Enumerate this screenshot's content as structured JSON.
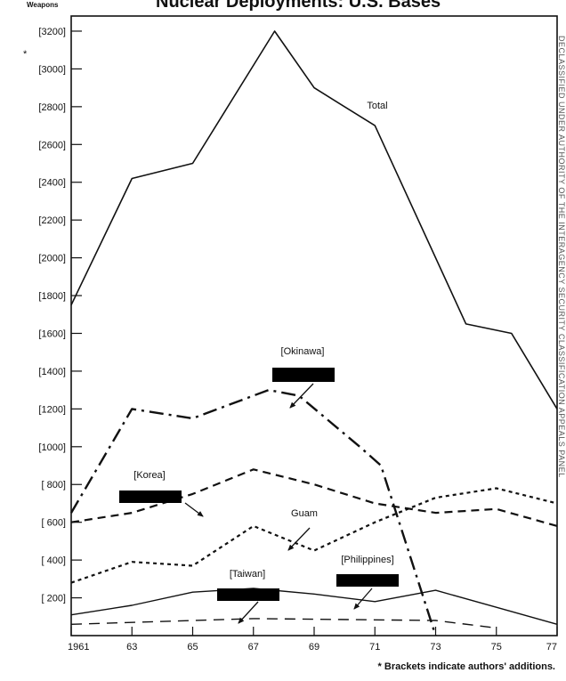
{
  "chart_data": {
    "type": "line",
    "title": "Nuclear Deployments: U.S. Bases",
    "ylabel": "Weapons",
    "footnote": "* Brackets indicate authors' additions.",
    "y_asterisk": "*",
    "side_text": "DECLASSIFIED UNDER AUTHORITY OF THE INTERAGENCY SECURITY CLASSIFICATION APPEALS PANEL",
    "x_tick_labels": [
      "1961",
      "63",
      "65",
      "67",
      "69",
      "71",
      "73",
      "75",
      "77"
    ],
    "x_ticks": [
      1961,
      1963,
      1965,
      1967,
      1969,
      1971,
      1973,
      1975,
      1977
    ],
    "y_tick_labels": [
      "[ 200]",
      "[ 400]",
      "[ 600]",
      "[ 800]",
      "[1000]",
      "[1200]",
      "[1400]",
      "[1600]",
      "[1800]",
      "[2000]",
      "[2200]",
      "[2400]",
      "[2600]",
      "[2800]",
      "[3000]",
      "[3200]"
    ],
    "y_ticks": [
      200,
      400,
      600,
      800,
      1000,
      1200,
      1400,
      1600,
      1800,
      2000,
      2200,
      2400,
      2600,
      2800,
      3000,
      3200
    ],
    "xlim": [
      1961,
      1977
    ],
    "ylim": [
      0,
      3280
    ],
    "grid": false,
    "series": [
      {
        "name": "Total",
        "style": "solid",
        "x": [
          1961,
          1963,
          1965,
          1967.7,
          1969,
          1971,
          1974,
          1975.5,
          1977
        ],
        "y": [
          1750,
          2420,
          2500,
          3200,
          2900,
          2700,
          1650,
          1600,
          1200
        ]
      },
      {
        "name": "[Okinawa]",
        "style": "dashdot",
        "x": [
          1961,
          1963,
          1965,
          1967.5,
          1968.5,
          1970.5,
          1971.2,
          1972,
          1973
        ],
        "y": [
          650,
          1200,
          1150,
          1300,
          1270,
          1000,
          900,
          500,
          0
        ]
      },
      {
        "name": "[Korea]",
        "style": "dashed",
        "x": [
          1961,
          1963,
          1965,
          1967,
          1969,
          1971,
          1973,
          1975,
          1977
        ],
        "y": [
          600,
          650,
          750,
          880,
          800,
          700,
          650,
          670,
          580
        ]
      },
      {
        "name": "Guam",
        "style": "dotted",
        "x": [
          1961,
          1963,
          1965,
          1967,
          1969,
          1971,
          1973,
          1975,
          1977
        ],
        "y": [
          280,
          390,
          370,
          580,
          450,
          600,
          730,
          780,
          700
        ]
      },
      {
        "name": "[Taiwan]",
        "style": "solid",
        "x": [
          1961,
          1963,
          1965,
          1967,
          1969,
          1971,
          1973,
          1975,
          1977
        ],
        "y": [
          110,
          160,
          230,
          250,
          220,
          180,
          240,
          150,
          60
        ]
      },
      {
        "name": "[Philippines]",
        "style": "longdash",
        "x": [
          1961,
          1967,
          1973,
          1975
        ],
        "y": [
          60,
          90,
          80,
          40
        ]
      }
    ],
    "annotations": [
      {
        "text": "Total",
        "series": "Total"
      },
      {
        "text": "[Okinawa]",
        "series": "[Okinawa]",
        "redaction": true
      },
      {
        "text": "[Korea]",
        "series": "[Korea]",
        "redaction": true
      },
      {
        "text": "Guam",
        "series": "Guam"
      },
      {
        "text": "[Taiwan]",
        "series": "[Taiwan]",
        "redaction": true
      },
      {
        "text": "[Philippines]",
        "series": "[Philippines]",
        "redaction": true
      }
    ]
  }
}
